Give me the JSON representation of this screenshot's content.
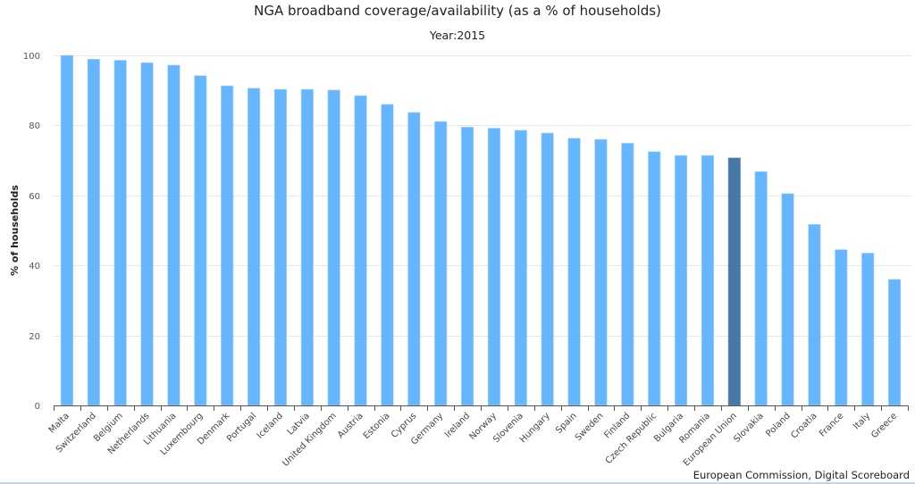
{
  "chart_data": {
    "type": "bar",
    "title": "NGA broadband coverage/availability (as a % of households)",
    "subtitle": "Year:2015",
    "xlabel": "",
    "ylabel": "% of households",
    "ylim": [
      0,
      100
    ],
    "yticks": [
      0,
      20,
      40,
      60,
      80,
      100
    ],
    "grid": true,
    "legend": "none",
    "credit": "European Commission, Digital Scoreboard",
    "colors": {
      "default": "#66b5ff",
      "highlight": "#4479a8",
      "highlight_category": "European Union"
    },
    "categories": [
      "Malta",
      "Switzerland",
      "Belgium",
      "Netherlands",
      "Lithuania",
      "Luxembourg",
      "Denmark",
      "Portugal",
      "Iceland",
      "Latvia",
      "United Kingdom",
      "Austria",
      "Estonia",
      "Cyprus",
      "Germany",
      "Ireland",
      "Norway",
      "Slovenia",
      "Hungary",
      "Spain",
      "Sweden",
      "Finland",
      "Czech Republic",
      "Bulgaria",
      "Romania",
      "European Union",
      "Slovakia",
      "Poland",
      "Croatia",
      "France",
      "Italy",
      "Greece"
    ],
    "values": [
      100.0,
      98.9,
      98.6,
      97.9,
      97.2,
      94.2,
      91.3,
      90.6,
      90.3,
      90.3,
      90.1,
      88.5,
      86.0,
      83.7,
      81.1,
      79.5,
      79.2,
      78.6,
      77.8,
      76.3,
      76.0,
      74.9,
      72.5,
      71.4,
      71.4,
      70.7,
      66.8,
      60.5,
      51.7,
      44.5,
      43.5,
      36.0
    ]
  }
}
